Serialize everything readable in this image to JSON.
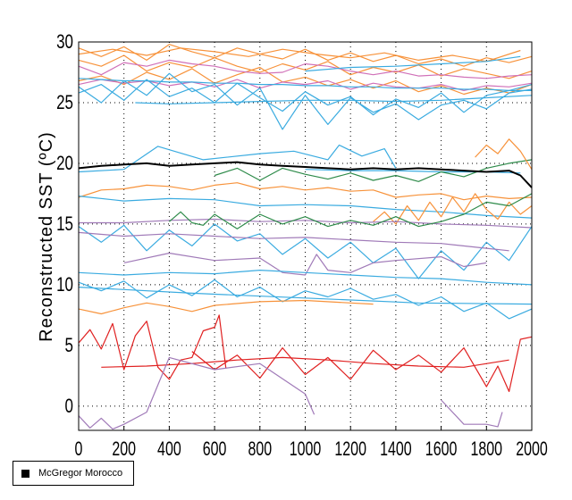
{
  "chart_data": {
    "type": "line",
    "title": "",
    "xlabel": "",
    "ylabel": "Reconstructed SST (ºC)",
    "xlim": [
      0,
      2000
    ],
    "ylim": [
      -2,
      30
    ],
    "xticks": [
      0,
      200,
      400,
      600,
      800,
      1000,
      1200,
      1400,
      1600,
      1800,
      2000
    ],
    "xtick_labels": [
      "0",
      "200",
      "400",
      "600",
      "800",
      "1000",
      "1200",
      "1400",
      "1600",
      "1800",
      "2000"
    ],
    "yticks": [
      0,
      5,
      10,
      15,
      20,
      25,
      30
    ],
    "ytick_labels": [
      "0",
      "5",
      "10",
      "15",
      "20",
      "25",
      "30"
    ],
    "grid": true,
    "legend": {
      "placement": "bottom-left",
      "entries": [
        {
          "label": "McGregor Morocco",
          "color": "#000000"
        }
      ]
    },
    "colors": {
      "orange": "#f7923a",
      "blue": "#3aabe0",
      "pink": "#d070b8",
      "purple": "#a07ab8",
      "green": "#2e8b4a",
      "red": "#e02020",
      "black": "#000000"
    },
    "series": [
      {
        "color": "orange",
        "x": [
          0,
          100,
          200,
          300,
          400,
          500,
          600,
          700,
          800,
          900,
          1000,
          1100,
          1200,
          1300,
          1400,
          1500,
          1600,
          1700,
          1800,
          1900,
          2000
        ],
        "y": [
          29.5,
          28.8,
          29.6,
          28.5,
          29.8,
          29.2,
          28.7,
          29.5,
          29.0,
          28.6,
          29.4,
          28.5,
          29.1,
          28.4,
          28.9,
          28.2,
          28.6,
          28.0,
          28.7,
          28.3,
          28.8
        ]
      },
      {
        "color": "orange",
        "x": [
          0,
          100,
          200,
          300,
          400,
          500,
          600,
          700,
          800,
          900,
          1000,
          1100,
          1200,
          1300,
          1400,
          1500,
          1600,
          1700,
          1800,
          1900,
          2000
        ],
        "y": [
          28.5,
          28.0,
          28.9,
          27.6,
          28.3,
          27.9,
          28.7,
          28.0,
          27.5,
          28.2,
          27.7,
          28.4,
          27.3,
          27.9,
          27.5,
          28.1,
          27.2,
          27.8,
          27.4,
          27.0,
          27.6
        ]
      },
      {
        "color": "orange",
        "x": [
          0,
          100,
          200,
          300,
          400,
          500,
          600,
          700,
          800,
          900,
          1000,
          1100,
          1200,
          1300,
          1400,
          1500,
          1600,
          1700,
          1800,
          1900,
          2000
        ],
        "y": [
          26.8,
          27.2,
          26.5,
          27.5,
          26.9,
          27.8,
          26.6,
          27.3,
          27.9,
          26.7,
          27.1,
          26.4,
          26.9,
          26.2,
          26.8,
          25.9,
          26.4,
          25.7,
          26.2,
          25.8,
          26.5
        ]
      },
      {
        "color": "orange",
        "x": [
          0,
          150,
          300,
          450,
          600,
          750,
          900,
          1050,
          1200,
          1350,
          1500,
          1650,
          1800,
          1950
        ],
        "y": [
          29.0,
          29.4,
          28.9,
          29.5,
          29.2,
          28.8,
          29.4,
          29.0,
          28.7,
          29.1,
          28.5,
          28.9,
          28.4,
          29.3
        ]
      },
      {
        "color": "pink",
        "x": [
          0,
          100,
          200,
          300,
          400,
          500,
          600,
          700,
          800,
          900,
          1000,
          1100,
          1200,
          1300,
          1400,
          1500,
          1600,
          1700,
          1800,
          1900,
          2000
        ],
        "y": [
          28.0,
          27.3,
          28.3,
          28.0,
          28.5,
          28.2,
          28.0,
          27.6,
          27.4,
          27.5,
          28.2,
          28.0,
          27.6,
          27.3,
          27.6,
          27.2,
          27.3,
          27.1,
          27.0,
          27.2,
          27.3
        ]
      },
      {
        "color": "pink",
        "x": [
          0,
          100,
          200,
          300,
          400,
          500,
          600,
          700,
          800,
          900,
          1000,
          1100,
          1200,
          1300,
          1400,
          1500,
          1600,
          1700,
          1800,
          1900,
          2000
        ],
        "y": [
          26.5,
          26.9,
          26.6,
          26.8,
          26.4,
          26.7,
          26.3,
          26.9,
          26.2,
          26.7,
          26.5,
          26.8,
          26.1,
          26.6,
          26.3,
          26.2,
          26.5,
          26.0,
          26.4,
          26.3,
          26.6
        ]
      },
      {
        "color": "blue",
        "x": [
          0,
          100,
          200,
          300,
          400,
          500,
          600,
          700,
          800,
          900,
          1000,
          1100,
          1200,
          1300,
          1400,
          1500,
          1600,
          1700,
          1800,
          1900,
          2000
        ],
        "y": [
          27.0,
          26.9,
          26.8,
          26.8,
          26.7,
          26.7,
          26.6,
          26.6,
          26.5,
          26.5,
          26.4,
          26.4,
          26.3,
          26.3,
          26.2,
          26.2,
          26.2,
          26.1,
          26.1,
          26.0,
          26.0
        ]
      },
      {
        "color": "blue",
        "x": [
          250,
          400,
          600,
          800,
          1000,
          1200,
          1400,
          1600,
          1800,
          2000
        ],
        "y": [
          25.0,
          24.9,
          25.0,
          25.1,
          25.2,
          25.2,
          25.1,
          25.2,
          25.4,
          25.6
        ]
      },
      {
        "color": "blue",
        "x": [
          0,
          100,
          200,
          300,
          400,
          500,
          600,
          700,
          800,
          900,
          1000,
          1100,
          1200,
          1300,
          1400,
          1500,
          1600,
          1700,
          1800,
          1900,
          2000
        ],
        "y": [
          25.8,
          26.5,
          25.2,
          26.9,
          25.5,
          26.2,
          25.0,
          26.6,
          25.4,
          24.3,
          25.9,
          24.8,
          25.5,
          24.0,
          25.3,
          24.6,
          25.8,
          24.2,
          25.6,
          26.0,
          26.5
        ]
      },
      {
        "color": "blue",
        "x": [
          0,
          100,
          200,
          300,
          400,
          500,
          600,
          700,
          800,
          900,
          1000,
          1100,
          1200,
          1300,
          1400,
          1500,
          1600,
          1700,
          1800,
          1900,
          2000
        ],
        "y": [
          26.3,
          25.0,
          26.8,
          25.6,
          27.4,
          25.9,
          26.5,
          24.8,
          26.2,
          22.8,
          25.6,
          23.2,
          25.4,
          24.2,
          24.9,
          23.6,
          24.8,
          25.2,
          24.5,
          25.8,
          26.1
        ]
      },
      {
        "color": "blue",
        "x": [
          1000,
          1200,
          1400,
          1600,
          1800,
          1950
        ],
        "y": [
          27.6,
          27.9,
          28.0,
          28.2,
          28.4,
          28.8
        ]
      },
      {
        "color": "blue",
        "x": [
          0,
          200,
          350,
          550,
          800,
          950,
          1100,
          1150,
          1250,
          1350,
          1400
        ],
        "y": [
          19.3,
          19.5,
          21.4,
          20.3,
          20.8,
          21.0,
          20.3,
          21.5,
          20.6,
          21.2,
          19.6
        ]
      },
      {
        "color": "blue",
        "x": [
          1000,
          1200,
          1400,
          1600,
          1800,
          1950
        ],
        "y": [
          19.5,
          19.4,
          19.4,
          19.3,
          19.3,
          19.2
        ]
      },
      {
        "color": "green",
        "x": [
          600,
          700,
          800,
          900,
          1000,
          1100,
          1200,
          1300,
          1400,
          1500,
          1600,
          1700,
          1800,
          1900,
          2000
        ],
        "y": [
          19.0,
          19.6,
          18.6,
          19.6,
          19.1,
          18.7,
          19.2,
          18.6,
          19.0,
          18.5,
          19.3,
          18.9,
          19.6,
          20.0,
          20.3
        ]
      },
      {
        "color": "orange",
        "x": [
          0,
          100,
          200,
          300,
          400,
          500,
          600,
          700,
          800,
          900,
          1000,
          1100,
          1200,
          1300,
          1400,
          1500,
          1600,
          1700,
          1800,
          1900,
          2000
        ],
        "y": [
          17.2,
          17.8,
          17.9,
          18.2,
          18.1,
          17.8,
          18.2,
          18.4,
          17.9,
          18.1,
          17.8,
          18.0,
          17.7,
          17.8,
          17.2,
          17.4,
          17.5,
          17.0,
          17.3,
          17.1,
          17.2
        ]
      },
      {
        "color": "blue",
        "x": [
          0,
          200,
          400,
          600,
          800,
          1000,
          1200,
          1400,
          1600,
          1800,
          2000
        ],
        "y": [
          17.3,
          16.9,
          17.1,
          17.0,
          16.5,
          16.6,
          16.5,
          16.2,
          16.0,
          15.7,
          15.5
        ]
      },
      {
        "color": "orange",
        "x": [
          1300,
          1350,
          1400,
          1450,
          1500,
          1550,
          1600,
          1650,
          1700,
          1750,
          1800,
          1850,
          1900,
          1950,
          2000
        ],
        "y": [
          15.2,
          16.0,
          15.0,
          16.5,
          15.3,
          16.8,
          15.6,
          17.2,
          16.0,
          17.5,
          16.2,
          15.4,
          16.8,
          15.8,
          16.5
        ]
      },
      {
        "color": "orange",
        "x": [
          1750,
          1800,
          1850,
          1900,
          1950,
          2000
        ],
        "y": [
          20.5,
          21.5,
          20.8,
          22.0,
          21.0,
          19.5
        ]
      },
      {
        "color": "purple",
        "x": [
          0,
          200,
          400,
          600,
          800,
          1000,
          1200,
          1400,
          1600,
          1800,
          2000
        ],
        "y": [
          15.1,
          15.1,
          15.3,
          15.4,
          15.2,
          15.3,
          15.1,
          15.2,
          15.0,
          14.9,
          14.7
        ]
      },
      {
        "color": "green",
        "x": [
          400,
          450,
          500,
          550,
          600,
          700,
          800,
          900,
          1000,
          1100,
          1200,
          1300,
          1400,
          1500,
          1600,
          1700,
          1800,
          1900,
          2000
        ],
        "y": [
          15.2,
          16.0,
          15.1,
          14.9,
          15.8,
          14.6,
          15.8,
          15.0,
          15.6,
          14.8,
          15.3,
          14.9,
          15.6,
          14.8,
          15.2,
          15.8,
          16.8,
          16.5,
          17.5
        ]
      },
      {
        "color": "blue",
        "x": [
          0,
          100,
          200,
          300,
          400,
          500,
          600,
          700,
          800,
          900,
          1000,
          1100,
          1200,
          1300,
          1400,
          1500,
          1600,
          1700,
          1800,
          1900,
          2000
        ],
        "y": [
          14.8,
          13.5,
          14.9,
          12.8,
          14.5,
          13.2,
          15.0,
          13.6,
          14.2,
          12.5,
          13.8,
          12.2,
          13.5,
          11.8,
          13.0,
          10.5,
          12.8,
          11.2,
          13.5,
          12.0,
          14.8
        ]
      },
      {
        "color": "purple",
        "x": [
          0,
          200,
          400,
          600,
          800,
          1000,
          1200,
          1400,
          1600,
          1800,
          1900
        ],
        "y": [
          14.3,
          14.0,
          14.2,
          14.0,
          13.8,
          13.9,
          13.7,
          13.5,
          13.4,
          13.0,
          12.8
        ]
      },
      {
        "color": "purple",
        "x": [
          200,
          400,
          600,
          800,
          900,
          1000,
          1050,
          1100,
          1200,
          1300,
          1400,
          1600,
          1700,
          1800
        ],
        "y": [
          11.8,
          12.6,
          12.0,
          12.2,
          11.0,
          10.8,
          12.5,
          11.2,
          11.0,
          11.8,
          12.0,
          12.3,
          11.5,
          11.8
        ]
      },
      {
        "color": "blue",
        "x": [
          0,
          200,
          400,
          600,
          800,
          1000,
          1200,
          1400,
          1600,
          1800,
          2000
        ],
        "y": [
          11.0,
          10.8,
          11.0,
          10.9,
          11.2,
          11.0,
          10.8,
          10.6,
          10.5,
          10.2,
          10.0
        ]
      },
      {
        "color": "blue",
        "x": [
          0,
          100,
          200,
          300,
          400,
          500,
          600,
          700,
          800,
          900,
          1000,
          1100,
          1200,
          1300,
          1400,
          1500,
          1600,
          1700,
          1800,
          1900,
          2000
        ],
        "y": [
          10.2,
          9.5,
          10.3,
          8.9,
          10.0,
          9.1,
          10.4,
          9.0,
          9.8,
          8.6,
          9.5,
          9.0,
          9.7,
          8.8,
          9.2,
          8.3,
          9.0,
          7.8,
          8.5,
          7.2,
          8.0
        ]
      },
      {
        "color": "blue",
        "x": [
          0,
          500,
          1000,
          1500,
          2000
        ],
        "y": [
          9.8,
          9.3,
          8.9,
          8.5,
          8.4
        ]
      },
      {
        "color": "orange",
        "x": [
          0,
          100,
          200,
          300,
          400,
          500,
          600,
          800,
          1000,
          1200,
          1300
        ],
        "y": [
          8.0,
          7.6,
          8.1,
          8.5,
          8.2,
          7.8,
          8.3,
          8.6,
          8.7,
          8.5,
          8.4
        ]
      },
      {
        "color": "red",
        "x": [
          0,
          50,
          100,
          150,
          200,
          250,
          300,
          350,
          400,
          450,
          500,
          550,
          600,
          620,
          650
        ],
        "y": [
          5.2,
          6.3,
          4.7,
          6.8,
          3.0,
          5.8,
          7.0,
          3.2,
          2.2,
          3.8,
          4.0,
          6.2,
          6.5,
          7.5,
          3.1
        ]
      },
      {
        "color": "red",
        "x": [
          100,
          300,
          500,
          700,
          900,
          1100,
          1300,
          1500,
          1700,
          1900
        ],
        "y": [
          3.2,
          3.3,
          3.5,
          3.8,
          4.0,
          3.8,
          3.5,
          3.3,
          3.2,
          3.8
        ]
      },
      {
        "color": "red",
        "x": [
          500,
          600,
          700,
          800,
          900,
          1000,
          1100,
          1200,
          1300,
          1400,
          1500,
          1600,
          1700,
          1800,
          1850,
          1900,
          1950,
          2000
        ],
        "y": [
          4.5,
          3.0,
          4.2,
          2.3,
          4.8,
          2.6,
          4.0,
          2.2,
          4.6,
          3.0,
          4.2,
          2.8,
          4.8,
          1.6,
          3.3,
          1.2,
          5.5,
          5.7
        ]
      },
      {
        "color": "purple",
        "x": [
          0,
          50,
          100,
          150,
          200,
          300,
          400,
          600,
          800,
          1000,
          1040
        ],
        "y": [
          -0.8,
          -1.8,
          -1.0,
          -1.9,
          -1.5,
          -0.5,
          4.0,
          3.0,
          3.5,
          1.0,
          -0.7
        ]
      },
      {
        "color": "purple",
        "x": [
          1600,
          1700,
          1800,
          1850,
          1870
        ],
        "y": [
          0.5,
          -1.5,
          -1.5,
          -1.7,
          -0.5
        ]
      },
      {
        "name": "McGregor Morocco",
        "color": "black",
        "width": 2,
        "x": [
          0,
          100,
          200,
          300,
          400,
          500,
          600,
          700,
          800,
          900,
          1000,
          1100,
          1200,
          1300,
          1400,
          1500,
          1600,
          1700,
          1800,
          1900,
          1950,
          2000
        ],
        "y": [
          19.6,
          19.8,
          19.9,
          20.0,
          19.8,
          19.9,
          20.0,
          20.1,
          19.9,
          19.8,
          19.7,
          19.6,
          19.5,
          19.6,
          19.5,
          19.6,
          19.5,
          19.4,
          19.3,
          19.4,
          19.0,
          18.0
        ]
      }
    ]
  }
}
